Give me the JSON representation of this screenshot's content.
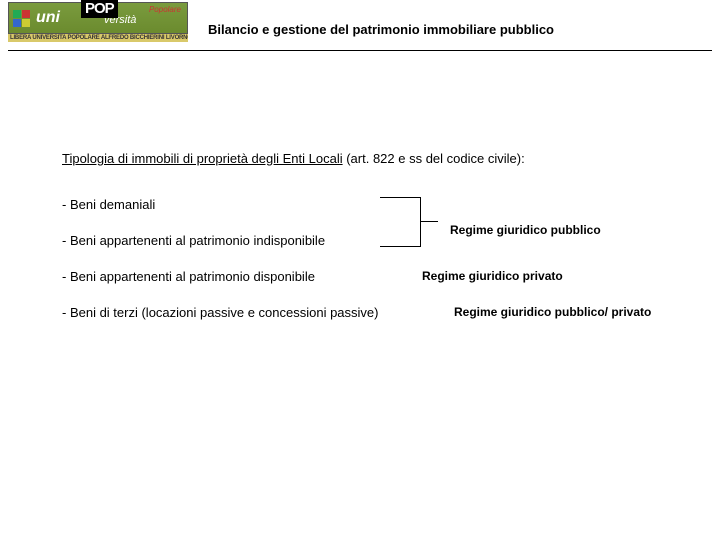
{
  "header": {
    "title": "Bilancio e gestione del patrimonio immobiliare pubblico",
    "logo": {
      "uni": "uni",
      "pop": "POP",
      "versita": "versità",
      "popolare": "Popolare",
      "tagline": "LIBERA UNIVERSITA POPOLARE ALFREDO BICCHIERINI LIVORNO"
    }
  },
  "content": {
    "heading_underlined": "Tipologia di immobili di proprietà degli Enti Locali",
    "heading_rest": " (art. 822 e ss del codice civile):",
    "items": [
      "- Beni demaniali",
      "- Beni appartenenti al patrimonio indisponibile",
      "- Beni appartenenti al patrimonio disponibile",
      "- Beni di terzi (locazioni passive e concessioni passive)"
    ],
    "regimes": [
      "Regime giuridico pubblico",
      "Regime giuridico privato",
      "Regime giuridico pubblico/ privato"
    ]
  },
  "colors": {
    "text": "#000000",
    "background": "#ffffff",
    "logo_green": "#7a9b3e",
    "logo_yellow": "#d9c96a",
    "logo_red": "#c33"
  }
}
